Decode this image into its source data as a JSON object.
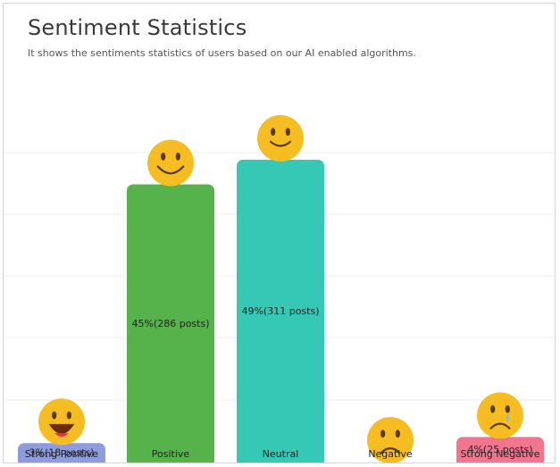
{
  "header": {
    "title": "Sentiment Statistics",
    "subtitle": "It shows the sentiments statistics of users based on our AI enabled algorithms."
  },
  "chart_data": {
    "type": "bar",
    "title": "Sentiment Statistics",
    "subtitle": "It shows the sentiments statistics of users based on our AI enabled algorithms.",
    "categories": [
      "Strong Positive",
      "Positive",
      "Neutral",
      "Negative",
      "Strong Negative"
    ],
    "values": [
      3,
      45,
      49,
      0,
      4
    ],
    "posts": [
      18,
      286,
      311,
      0,
      25
    ],
    "data_labels": [
      "3%(18 posts)",
      "45%(286 posts)",
      "49%(311 posts)",
      "",
      "4%(25 posts)"
    ],
    "colors": [
      "#8e9bdc",
      "#56b24a",
      "#35c8b4",
      "#cccccc",
      "#f0768f"
    ],
    "icons": [
      "grinning-tongue-face-icon",
      "smiling-face-icon",
      "slight-smile-face-icon",
      "frowning-face-icon",
      "crying-face-icon"
    ],
    "ylim": [
      0,
      55
    ],
    "grid": true,
    "legend": "none"
  }
}
